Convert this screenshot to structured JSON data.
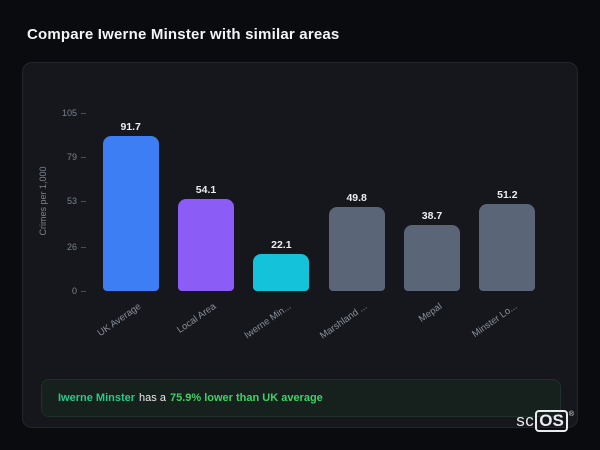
{
  "page": {
    "title": "Compare Iwerne Minster with similar areas"
  },
  "chart_data": {
    "type": "bar",
    "title": "",
    "xlabel": "",
    "ylabel": "Crimes per 1,000",
    "ylim": [
      0,
      105
    ],
    "yticks": [
      0,
      26,
      53,
      79,
      105
    ],
    "grid": false,
    "legend": false,
    "categories": [
      "UK Average",
      "Local Area",
      "Iwerne Min...",
      "Marshland ...",
      "Mepal",
      "Minster Lo..."
    ],
    "values": [
      91.7,
      54.1,
      22.1,
      49.8,
      38.7,
      51.2
    ],
    "bar_colors": [
      "#3d7ef5",
      "#8b5cf6",
      "#14c3d9",
      "#5a6577",
      "#5a6577",
      "#5a6577"
    ]
  },
  "footer": {
    "highlight": "Iwerne Minster",
    "mid": "has a",
    "stat": "75.9% lower than UK average",
    "highlight_color": "#27c98a",
    "stat_color": "#3ed168"
  },
  "logo": {
    "sc": "sc",
    "os": "OS",
    "registered": "®"
  },
  "colors": {
    "page_bg": "#0a0b0e",
    "card_bg": "#15171c",
    "title": "#f4f5f7",
    "axis_text": "#7d828c"
  }
}
